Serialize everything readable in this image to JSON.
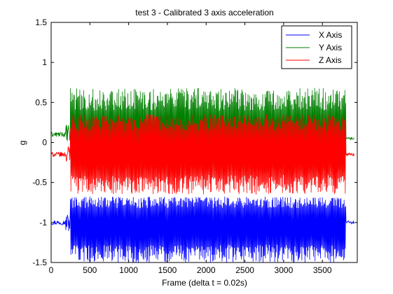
{
  "chart_data": {
    "type": "line",
    "title": "test 3 - Calibrated 3 axis acceleration",
    "xlabel": "Frame (delta t = 0.02s)",
    "ylabel": "g",
    "xlim": [
      0,
      3950
    ],
    "ylim": [
      -1.5,
      1.5
    ],
    "xticks": [
      0,
      500,
      1000,
      1500,
      2000,
      2500,
      3000,
      3500
    ],
    "yticks": [
      -1.5,
      -1,
      -0.5,
      0,
      0.5,
      1,
      1.5
    ],
    "grid": false,
    "legend_position": "top-right",
    "series": [
      {
        "name": "X Axis",
        "color": "#0000ff",
        "rest_before": -1.0,
        "rest_after": -1.0,
        "active_range": [
          250,
          3800
        ],
        "oscillation_min": -1.5,
        "oscillation_max": -0.68,
        "oscillation_mean": -1.0
      },
      {
        "name": "Y Axis",
        "color": "#007f00",
        "rest_before": 0.1,
        "rest_after": 0.05,
        "active_range": [
          250,
          3800
        ],
        "oscillation_min": -0.45,
        "oscillation_max": 0.68,
        "oscillation_mean": 0.05
      },
      {
        "name": "Z Axis",
        "color": "#ff0000",
        "rest_before": -0.15,
        "rest_after": -0.15,
        "active_range": [
          250,
          3800
        ],
        "oscillation_min": -0.65,
        "oscillation_max": 0.35,
        "oscillation_mean": -0.1
      }
    ]
  }
}
